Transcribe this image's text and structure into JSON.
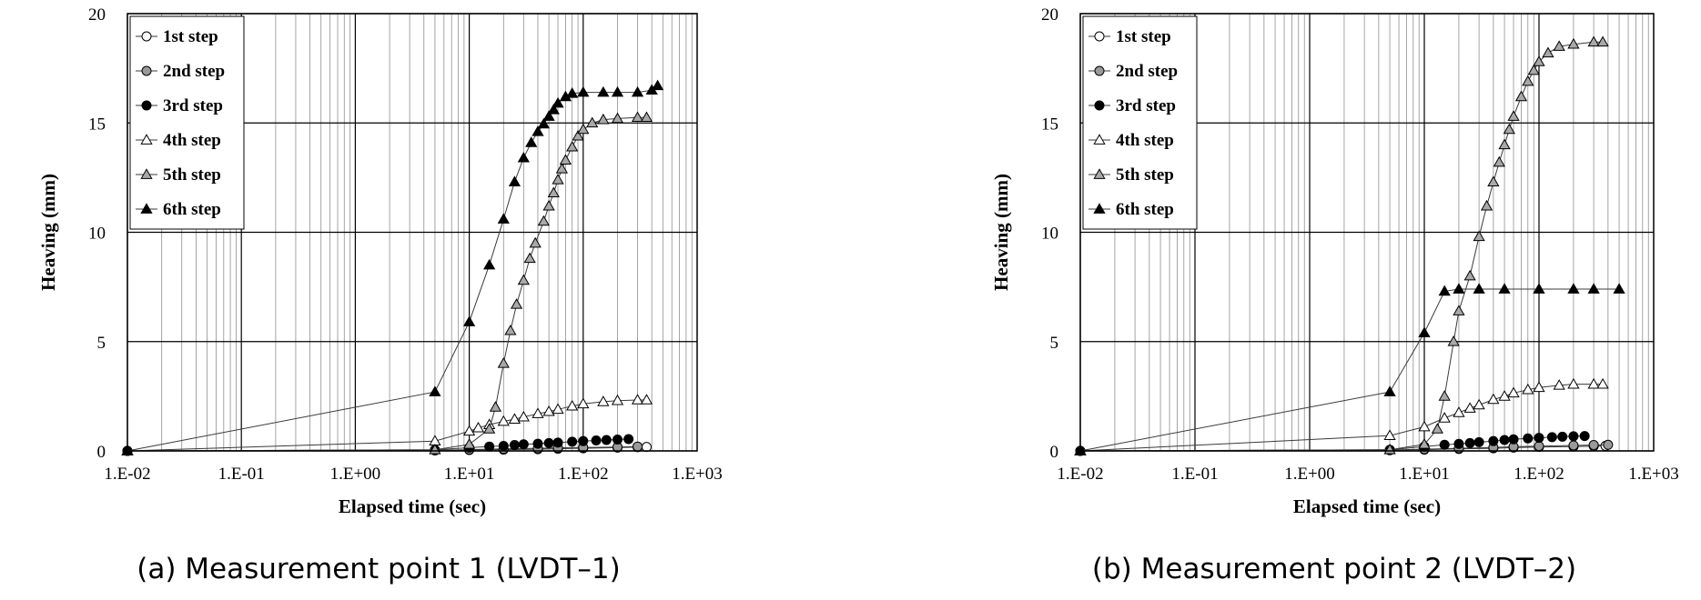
{
  "chart_data": [
    {
      "type": "scatter",
      "caption": "(a) Measurement point 1 (LVDT–1)",
      "xlabel": "Elapsed time (sec)",
      "ylabel": "Heaving (mm)",
      "xscale": "log",
      "xlim": [
        0.01,
        1000
      ],
      "ylim": [
        0,
        20
      ],
      "x_tick_labels": [
        "1.E-02",
        "1.E-01",
        "1.E+00",
        "1.E+01",
        "1.E+02",
        "1.E+03"
      ],
      "y_tick_labels": [
        "0",
        "5",
        "10",
        "15",
        "20"
      ],
      "grid": true,
      "legend_position": "top-left",
      "series": [
        {
          "name": "1st step",
          "marker": "circle-open",
          "points": [
            [
              0.01,
              0
            ],
            [
              5,
              0.02
            ],
            [
              10,
              0.04
            ],
            [
              20,
              0.06
            ],
            [
              40,
              0.08
            ],
            [
              60,
              0.1
            ],
            [
              100,
              0.12
            ],
            [
              200,
              0.15
            ],
            [
              300,
              0.17
            ],
            [
              360,
              0.18
            ]
          ]
        },
        {
          "name": "2nd step",
          "marker": "circle-gray",
          "points": [
            [
              0.01,
              0
            ],
            [
              5,
              0.03
            ],
            [
              10,
              0.06
            ],
            [
              20,
              0.09
            ],
            [
              40,
              0.12
            ],
            [
              60,
              0.14
            ],
            [
              100,
              0.16
            ],
            [
              200,
              0.18
            ],
            [
              300,
              0.2
            ]
          ]
        },
        {
          "name": "3rd step",
          "marker": "circle-filled",
          "points": [
            [
              0.01,
              0
            ],
            [
              5,
              0.05
            ],
            [
              10,
              0.15
            ],
            [
              15,
              0.2
            ],
            [
              20,
              0.23
            ],
            [
              25,
              0.27
            ],
            [
              30,
              0.3
            ],
            [
              40,
              0.33
            ],
            [
              50,
              0.36
            ],
            [
              60,
              0.38
            ],
            [
              80,
              0.42
            ],
            [
              100,
              0.45
            ],
            [
              130,
              0.48
            ],
            [
              160,
              0.5
            ],
            [
              200,
              0.52
            ],
            [
              250,
              0.54
            ]
          ]
        },
        {
          "name": "4th step",
          "marker": "triangle-open",
          "points": [
            [
              0.01,
              0
            ],
            [
              5,
              0.45
            ],
            [
              10,
              0.9
            ],
            [
              12,
              1.05
            ],
            [
              15,
              1.2
            ],
            [
              20,
              1.35
            ],
            [
              25,
              1.45
            ],
            [
              30,
              1.55
            ],
            [
              40,
              1.7
            ],
            [
              50,
              1.8
            ],
            [
              60,
              1.9
            ],
            [
              80,
              2.05
            ],
            [
              100,
              2.15
            ],
            [
              150,
              2.25
            ],
            [
              200,
              2.3
            ],
            [
              300,
              2.33
            ],
            [
              360,
              2.33
            ]
          ]
        },
        {
          "name": "5th step",
          "marker": "triangle-gray",
          "points": [
            [
              0.01,
              0
            ],
            [
              5,
              0.05
            ],
            [
              10,
              0.3
            ],
            [
              15,
              1.0
            ],
            [
              17,
              2.0
            ],
            [
              20,
              4.0
            ],
            [
              23,
              5.5
            ],
            [
              26,
              6.7
            ],
            [
              30,
              7.8
            ],
            [
              34,
              8.8
            ],
            [
              38,
              9.5
            ],
            [
              45,
              10.5
            ],
            [
              50,
              11.2
            ],
            [
              55,
              11.8
            ],
            [
              60,
              12.4
            ],
            [
              65,
              12.9
            ],
            [
              70,
              13.3
            ],
            [
              80,
              13.9
            ],
            [
              90,
              14.4
            ],
            [
              100,
              14.7
            ],
            [
              120,
              15.0
            ],
            [
              150,
              15.15
            ],
            [
              200,
              15.2
            ],
            [
              300,
              15.25
            ],
            [
              360,
              15.25
            ]
          ]
        },
        {
          "name": "6th step",
          "marker": "triangle-filled",
          "points": [
            [
              0.01,
              0
            ],
            [
              5,
              2.7
            ],
            [
              10,
              5.9
            ],
            [
              15,
              8.5
            ],
            [
              20,
              10.6
            ],
            [
              25,
              12.3
            ],
            [
              30,
              13.4
            ],
            [
              35,
              14.1
            ],
            [
              40,
              14.6
            ],
            [
              45,
              14.95
            ],
            [
              50,
              15.3
            ],
            [
              55,
              15.6
            ],
            [
              60,
              15.9
            ],
            [
              70,
              16.2
            ],
            [
              80,
              16.35
            ],
            [
              100,
              16.4
            ],
            [
              150,
              16.4
            ],
            [
              200,
              16.4
            ],
            [
              300,
              16.4
            ],
            [
              400,
              16.5
            ],
            [
              450,
              16.7
            ]
          ]
        }
      ]
    },
    {
      "type": "scatter",
      "caption": "(b) Measurement point 2 (LVDT–2)",
      "xlabel": "Elapsed time (sec)",
      "ylabel": "Heaving (mm)",
      "xscale": "log",
      "xlim": [
        0.01,
        1000
      ],
      "ylim": [
        0,
        20
      ],
      "x_tick_labels": [
        "1.E-02",
        "1.E-01",
        "1.E+00",
        "1.E+01",
        "1.E+02",
        "1.E+03"
      ],
      "y_tick_labels": [
        "0",
        "5",
        "10",
        "15",
        "20"
      ],
      "grid": true,
      "legend_position": "top-left",
      "series": [
        {
          "name": "1st step",
          "marker": "circle-open",
          "points": [
            [
              0.01,
              0
            ],
            [
              5,
              0.03
            ],
            [
              10,
              0.06
            ],
            [
              20,
              0.09
            ],
            [
              40,
              0.12
            ],
            [
              60,
              0.15
            ],
            [
              100,
              0.18
            ],
            [
              200,
              0.2
            ],
            [
              300,
              0.22
            ],
            [
              380,
              0.23
            ]
          ]
        },
        {
          "name": "2nd step",
          "marker": "circle-gray",
          "points": [
            [
              0.01,
              0
            ],
            [
              5,
              0.04
            ],
            [
              10,
              0.08
            ],
            [
              20,
              0.12
            ],
            [
              40,
              0.16
            ],
            [
              60,
              0.19
            ],
            [
              100,
              0.22
            ],
            [
              200,
              0.25
            ],
            [
              300,
              0.27
            ],
            [
              400,
              0.28
            ]
          ]
        },
        {
          "name": "3rd step",
          "marker": "circle-filled",
          "points": [
            [
              0.01,
              0
            ],
            [
              5,
              0.05
            ],
            [
              10,
              0.2
            ],
            [
              15,
              0.28
            ],
            [
              20,
              0.32
            ],
            [
              25,
              0.36
            ],
            [
              30,
              0.4
            ],
            [
              40,
              0.45
            ],
            [
              50,
              0.5
            ],
            [
              60,
              0.53
            ],
            [
              80,
              0.57
            ],
            [
              100,
              0.6
            ],
            [
              130,
              0.63
            ],
            [
              160,
              0.65
            ],
            [
              200,
              0.67
            ],
            [
              250,
              0.68
            ]
          ]
        },
        {
          "name": "4th step",
          "marker": "triangle-open",
          "points": [
            [
              0.01,
              0
            ],
            [
              5,
              0.7
            ],
            [
              10,
              1.1
            ],
            [
              15,
              1.5
            ],
            [
              20,
              1.75
            ],
            [
              25,
              1.95
            ],
            [
              30,
              2.1
            ],
            [
              40,
              2.35
            ],
            [
              50,
              2.5
            ],
            [
              60,
              2.65
            ],
            [
              80,
              2.8
            ],
            [
              100,
              2.9
            ],
            [
              150,
              3.0
            ],
            [
              200,
              3.05
            ],
            [
              300,
              3.05
            ],
            [
              360,
              3.05
            ]
          ]
        },
        {
          "name": "5th step",
          "marker": "triangle-gray",
          "points": [
            [
              0.01,
              0
            ],
            [
              5,
              0.05
            ],
            [
              10,
              0.3
            ],
            [
              13,
              1.0
            ],
            [
              15,
              2.5
            ],
            [
              18,
              5.0
            ],
            [
              20,
              6.4
            ],
            [
              25,
              8.0
            ],
            [
              30,
              9.8
            ],
            [
              35,
              11.2
            ],
            [
              40,
              12.3
            ],
            [
              45,
              13.2
            ],
            [
              50,
              14.0
            ],
            [
              55,
              14.7
            ],
            [
              60,
              15.3
            ],
            [
              70,
              16.2
            ],
            [
              80,
              16.9
            ],
            [
              90,
              17.4
            ],
            [
              100,
              17.8
            ],
            [
              120,
              18.2
            ],
            [
              150,
              18.5
            ],
            [
              200,
              18.6
            ],
            [
              300,
              18.7
            ],
            [
              360,
              18.7
            ]
          ]
        },
        {
          "name": "6th step",
          "marker": "triangle-filled",
          "points": [
            [
              0.01,
              0
            ],
            [
              5,
              2.7
            ],
            [
              10,
              5.4
            ],
            [
              15,
              7.3
            ],
            [
              20,
              7.4
            ],
            [
              30,
              7.4
            ],
            [
              50,
              7.4
            ],
            [
              100,
              7.4
            ],
            [
              200,
              7.4
            ],
            [
              300,
              7.4
            ],
            [
              500,
              7.4
            ]
          ]
        }
      ]
    }
  ]
}
